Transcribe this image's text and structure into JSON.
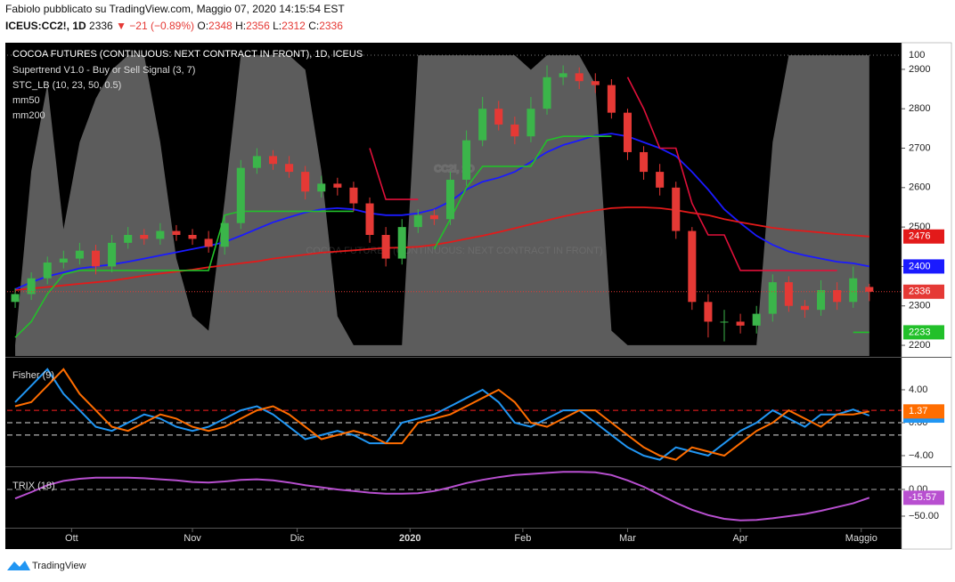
{
  "header": {
    "author_line": "Fabiolo pubblicato su TradingView.com, Maggio 07, 2020 14:15:54 EST",
    "symbol": "ICEUS:CC2!, 1D",
    "last": "2336",
    "change": "▼ −21 (−0.89%)",
    "ohlc": [
      {
        "label": "O:",
        "value": "2348"
      },
      {
        "label": "H:",
        "value": "2356"
      },
      {
        "label": "L:",
        "value": "2312"
      },
      {
        "label": "C:",
        "value": "2336"
      }
    ]
  },
  "watermark": {
    "symbol": "CC2!, 1D",
    "name": "COCOA FUTURES (CONTINUOUS: NEXT CONTRACT IN FRONT)"
  },
  "footer": {
    "brand": "TradingView"
  },
  "chart_data": [
    {
      "type": "candlestick",
      "title": "COCOA FUTURES (CONTINUOUS: NEXT CONTRACT IN FRONT), 1D, ICEUS",
      "up_color": "#3bb54a",
      "down_color": "#e53935",
      "x": [
        0,
        1,
        2,
        3,
        4,
        5,
        6,
        7,
        8,
        9,
        10,
        11,
        12,
        13,
        14,
        15,
        16,
        17,
        18,
        19,
        20,
        21,
        22,
        23,
        24,
        25,
        26,
        27,
        28,
        29,
        30,
        31,
        32,
        33,
        34,
        35,
        36,
        37,
        38,
        39,
        40,
        41,
        42,
        43,
        44,
        45,
        46,
        47,
        48,
        49,
        50,
        51,
        52,
        53
      ],
      "xlim": [
        -0.5,
        55
      ],
      "open": [
        2310,
        2330,
        2370,
        2410,
        2420,
        2440,
        2400,
        2460,
        2480,
        2470,
        2490,
        2480,
        2470,
        2450,
        2510,
        2650,
        2680,
        2660,
        2640,
        2590,
        2610,
        2600,
        2560,
        2480,
        2420,
        2500,
        2530,
        2520,
        2620,
        2720,
        2800,
        2760,
        2730,
        2800,
        2880,
        2890,
        2870,
        2860,
        2790,
        2690,
        2640,
        2600,
        2490,
        2310,
        2260,
        2260,
        2250,
        2280,
        2360,
        2300,
        2290,
        2340,
        2310,
        2348
      ],
      "high": [
        2345,
        2385,
        2425,
        2440,
        2460,
        2455,
        2480,
        2500,
        2495,
        2510,
        2505,
        2495,
        2490,
        2530,
        2670,
        2700,
        2695,
        2680,
        2655,
        2630,
        2625,
        2615,
        2575,
        2500,
        2520,
        2545,
        2545,
        2640,
        2745,
        2830,
        2820,
        2780,
        2830,
        2910,
        2910,
        2905,
        2890,
        2875,
        2800,
        2705,
        2660,
        2615,
        2500,
        2330,
        2290,
        2280,
        2300,
        2380,
        2375,
        2315,
        2365,
        2360,
        2400,
        2356
      ],
      "low": [
        2295,
        2315,
        2355,
        2395,
        2405,
        2380,
        2385,
        2445,
        2455,
        2455,
        2465,
        2455,
        2435,
        2430,
        2495,
        2635,
        2645,
        2625,
        2570,
        2575,
        2580,
        2540,
        2460,
        2400,
        2405,
        2485,
        2505,
        2505,
        2605,
        2705,
        2745,
        2710,
        2715,
        2785,
        2860,
        2850,
        2840,
        2775,
        2670,
        2620,
        2580,
        2470,
        2290,
        2220,
        2210,
        2230,
        2230,
        2260,
        2285,
        2270,
        2275,
        2290,
        2295,
        2312
      ],
      "close": [
        2330,
        2370,
        2410,
        2420,
        2440,
        2400,
        2460,
        2480,
        2470,
        2490,
        2480,
        2470,
        2450,
        2510,
        2650,
        2680,
        2660,
        2640,
        2590,
        2610,
        2600,
        2560,
        2480,
        2420,
        2500,
        2530,
        2520,
        2620,
        2720,
        2800,
        2760,
        2730,
        2800,
        2880,
        2890,
        2870,
        2860,
        2790,
        2690,
        2640,
        2600,
        2490,
        2310,
        2260,
        2260,
        2250,
        2280,
        2360,
        2300,
        2290,
        2340,
        2310,
        2370,
        2336
      ],
      "ylim": [
        2173,
        2963
      ],
      "yticks": [
        2200,
        2300,
        2400,
        2500,
        2600,
        2700,
        2800,
        2900
      ],
      "supertrend": {
        "name": "Supertrend V1.0 - Buy or Sell Signal (3, 7)",
        "up_color": "#22c02a",
        "down_color": "#e0103a",
        "up": [
          2220,
          2260,
          2330,
          2380,
          2390,
          2390,
          2390,
          2390,
          2390,
          2390,
          2390,
          2390,
          2390,
          2530,
          2540,
          2540,
          2540,
          2540,
          2540,
          2540,
          2540,
          2540,
          null,
          null,
          null,
          null,
          2444,
          2520,
          2600,
          2654,
          2654,
          2654,
          2654,
          2720,
          2730,
          2730,
          2730,
          2730,
          null,
          null,
          null,
          null,
          null,
          null,
          null,
          null,
          null,
          null,
          null,
          null,
          null,
          null,
          2233,
          2233
        ],
        "down": [
          null,
          null,
          null,
          null,
          null,
          null,
          null,
          null,
          null,
          null,
          null,
          null,
          null,
          null,
          null,
          null,
          null,
          null,
          null,
          null,
          null,
          null,
          2700,
          2570,
          2570,
          2570,
          null,
          null,
          null,
          null,
          null,
          null,
          null,
          null,
          null,
          null,
          null,
          null,
          2880,
          2800,
          2700,
          2700,
          2560,
          2480,
          2480,
          2390,
          2390,
          2390,
          2390,
          2390,
          2390,
          2390,
          null,
          null
        ]
      },
      "stc": {
        "name": "STC_LB (10, 23, 50, 0.5)",
        "color": "#9a9a9a",
        "lim": [
          -3.7,
          103.7
        ],
        "ticks": [
          100
        ],
        "values": [
          0,
          60,
          90,
          40,
          70,
          85,
          95,
          100,
          100,
          70,
          30,
          10,
          5,
          50,
          100,
          100,
          100,
          100,
          95,
          60,
          10,
          0,
          0,
          0,
          0,
          100,
          100,
          100,
          100,
          100,
          100,
          100,
          95,
          100,
          100,
          100,
          90,
          5,
          0,
          0,
          0,
          0,
          0,
          0,
          0,
          0,
          0,
          70,
          100,
          100,
          100,
          100,
          100,
          100
        ]
      },
      "series": [
        {
          "name": "mm50",
          "color": "#1a1aff",
          "values": [
            2342,
            2360,
            2375,
            2385,
            2395,
            2400,
            2405,
            2412,
            2420,
            2428,
            2436,
            2444,
            2452,
            2462,
            2478,
            2495,
            2512,
            2525,
            2537,
            2545,
            2548,
            2545,
            2535,
            2530,
            2530,
            2535,
            2545,
            2565,
            2595,
            2615,
            2625,
            2640,
            2665,
            2690,
            2708,
            2720,
            2732,
            2737,
            2730,
            2715,
            2700,
            2680,
            2640,
            2595,
            2545,
            2510,
            2478,
            2455,
            2438,
            2428,
            2420,
            2412,
            2408,
            2400
          ]
        },
        {
          "name": "mm200",
          "color": "#e31a1a",
          "values": [
            2340,
            2344,
            2348,
            2352,
            2356,
            2360,
            2364,
            2370,
            2377,
            2382,
            2387,
            2392,
            2398,
            2403,
            2408,
            2413,
            2420,
            2425,
            2430,
            2435,
            2438,
            2441,
            2444,
            2447,
            2448,
            2450,
            2455,
            2462,
            2470,
            2478,
            2487,
            2497,
            2507,
            2517,
            2527,
            2535,
            2542,
            2548,
            2550,
            2550,
            2548,
            2543,
            2536,
            2530,
            2520,
            2512,
            2505,
            2498,
            2493,
            2490,
            2486,
            2482,
            2479,
            2476
          ]
        }
      ]
    },
    {
      "type": "line",
      "title": "Fisher (9)",
      "ylim": [
        -5.19,
        7.89
      ],
      "yticks": [
        {
          "value": 4,
          "label": "4.00"
        },
        {
          "value": 0,
          "label": "0.00"
        },
        {
          "value": -4,
          "label": "−4.00"
        }
      ],
      "levels": [
        {
          "value": 1.5,
          "color": "#ff2020"
        },
        {
          "value": 0,
          "color": "#dddddd"
        },
        {
          "value": -1.5,
          "color": "#dddddd"
        }
      ],
      "series": [
        {
          "name": "Fisher",
          "color": "#2196f3",
          "values": [
            2.5,
            4.5,
            6.5,
            3.5,
            1.5,
            -0.5,
            -1,
            0,
            1,
            0.5,
            -0.5,
            -1,
            -0.5,
            0.5,
            1.5,
            2,
            1,
            -0.5,
            -2,
            -1.5,
            -1,
            -1.5,
            -2.5,
            -2.5,
            0,
            0.5,
            1,
            2,
            3,
            4,
            2.5,
            0,
            -0.5,
            0.5,
            1.5,
            1.5,
            0,
            -1.5,
            -3,
            -4,
            -4.5,
            -3,
            -3.5,
            -4,
            -2.5,
            -1,
            0,
            1.5,
            0.5,
            -0.5,
            1,
            1,
            1.6,
            0.86
          ]
        },
        {
          "name": "Trigger",
          "color": "#ff6d00",
          "values": [
            2.0,
            2.5,
            4.5,
            6.5,
            3.5,
            1.5,
            -0.5,
            -1,
            0,
            1,
            0.5,
            -0.5,
            -1,
            -0.5,
            0.5,
            1.5,
            2,
            1,
            -0.5,
            -2,
            -1.5,
            -1,
            -1.5,
            -2.5,
            -2.5,
            0,
            0.5,
            1,
            2,
            3,
            4,
            2.5,
            0,
            -0.5,
            0.5,
            1.5,
            1.5,
            0,
            -1.5,
            -3,
            -4,
            -4.5,
            -3,
            -3.5,
            -4,
            -2.5,
            -1,
            0,
            1.5,
            0.5,
            -0.5,
            1,
            1,
            1.37
          ]
        }
      ]
    },
    {
      "type": "line",
      "title": "TRIX (18)",
      "ylim": [
        -71.7,
        40
      ],
      "yticks": [
        {
          "value": 0,
          "label": "0.00"
        },
        {
          "value": -50,
          "label": "−50.00"
        }
      ],
      "levels": [
        {
          "value": 0,
          "color": "#aaaaaa"
        }
      ],
      "xticks": [
        {
          "value": 3.5,
          "label": "Ott"
        },
        {
          "value": 11,
          "label": "Nov"
        },
        {
          "value": 17.5,
          "label": "Dic"
        },
        {
          "value": 24.5,
          "label": "2020"
        },
        {
          "value": 31.5,
          "label": "Feb"
        },
        {
          "value": 38,
          "label": "Mar"
        },
        {
          "value": 45,
          "label": "Apr"
        },
        {
          "value": 52.5,
          "label": "Maggio"
        }
      ],
      "series": [
        {
          "name": "TRIX",
          "color": "#b84fd0",
          "values": [
            -17,
            -5,
            8,
            16,
            20,
            22,
            22,
            22,
            21,
            19,
            17,
            14,
            13,
            15,
            18,
            19,
            17,
            13,
            8,
            4,
            0,
            -3,
            -6,
            -8,
            -8,
            -7,
            -3,
            4,
            12,
            18,
            23,
            27,
            29,
            31,
            33,
            33,
            32,
            27,
            17,
            5,
            -10,
            -25,
            -38,
            -48,
            -55,
            -58,
            -57,
            -54,
            -50,
            -46,
            -40,
            -33,
            -26,
            -15.57
          ]
        }
      ]
    }
  ]
}
